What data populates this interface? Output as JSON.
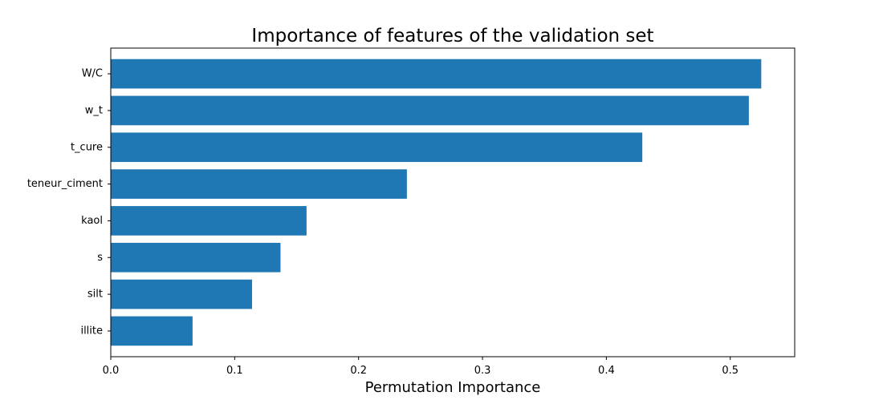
{
  "chart_data": {
    "type": "bar",
    "orientation": "horizontal",
    "title": "Importance of features of the validation set",
    "xlabel": "Permutation Importance",
    "ylabel": "",
    "categories": [
      "W/C",
      "w_t",
      "t_cure",
      "teneur_ciment",
      "kaol",
      "s",
      "silt",
      "illite"
    ],
    "values": [
      0.525,
      0.515,
      0.429,
      0.239,
      0.158,
      0.137,
      0.114,
      0.066
    ],
    "xlim": [
      0,
      0.552
    ],
    "xticks": [
      0.0,
      0.1,
      0.2,
      0.3,
      0.4,
      0.5
    ],
    "xtick_labels": [
      "0.0",
      "0.1",
      "0.2",
      "0.3",
      "0.4",
      "0.5"
    ],
    "grid": false,
    "legend": "none",
    "bar_color": "#1f77b4"
  }
}
